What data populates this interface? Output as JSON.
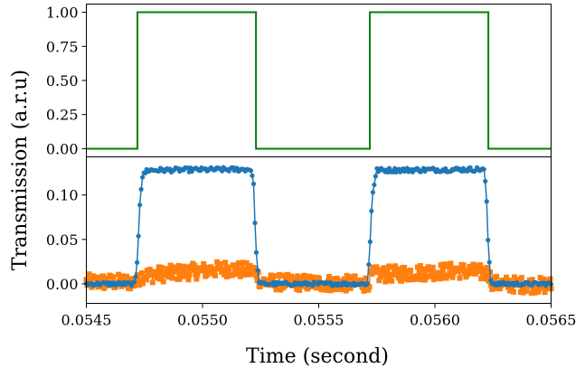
{
  "chart_data": [
    {
      "type": "line",
      "panel": "top",
      "xlim": [
        0.0545,
        0.0565
      ],
      "ylim": [
        -0.06,
        1.06
      ],
      "yticks": [
        0.0,
        0.25,
        0.5,
        0.75,
        1.0
      ],
      "ytick_labels": [
        "0.00",
        "0.25",
        "0.50",
        "0.75",
        "1.00"
      ],
      "colors": {
        "series": "#008000"
      },
      "series": [
        {
          "x": [
            0.0545,
            0.05472,
            0.05472,
            0.05523,
            0.05523,
            0.05572,
            0.05572,
            0.05623,
            0.05623,
            0.0565
          ],
          "y": [
            0,
            0,
            1,
            1,
            0,
            0,
            1,
            1,
            0,
            0
          ]
        }
      ]
    },
    {
      "type": "scatter",
      "panel": "bottom",
      "xlim": [
        0.0545,
        0.0565
      ],
      "ylim": [
        -0.022,
        0.143
      ],
      "yticks": [
        0.0,
        0.05,
        0.1
      ],
      "ytick_labels": [
        "0.00",
        "0.05",
        "0.10"
      ],
      "xticks": [
        0.0545,
        0.055,
        0.0555,
        0.056,
        0.0565
      ],
      "xtick_labels": [
        "0.0545",
        "0.0550",
        "0.0555",
        "0.0560",
        "0.0565"
      ],
      "colors": {
        "blue": "#1f77b4",
        "orange": "#ff7f0e"
      },
      "series": [
        {
          "marker": "circle",
          "approx_profile": [
            [
              0.0545,
              0.0
            ],
            [
              0.05471,
              0.0
            ],
            [
              0.05472,
              0.03
            ],
            [
              0.05473,
              0.09
            ],
            [
              0.05474,
              0.12
            ],
            [
              0.05476,
              0.128
            ],
            [
              0.05521,
              0.129
            ],
            [
              0.05522,
              0.11
            ],
            [
              0.05523,
              0.04
            ],
            [
              0.05524,
              0.005
            ],
            [
              0.05525,
              0.0
            ],
            [
              0.05571,
              0.0
            ],
            [
              0.05572,
              0.04
            ],
            [
              0.05573,
              0.1
            ],
            [
              0.05575,
              0.128
            ],
            [
              0.05621,
              0.129
            ],
            [
              0.05622,
              0.11
            ],
            [
              0.05623,
              0.04
            ],
            [
              0.05624,
              0.005
            ],
            [
              0.05625,
              0.0
            ],
            [
              0.0565,
              0.0
            ]
          ]
        },
        {
          "marker": "square",
          "approx_profile": [
            [
              0.0545,
              0.002
            ],
            [
              0.05472,
              0.002
            ],
            [
              0.05473,
              0.009
            ],
            [
              0.0551,
              0.017
            ],
            [
              0.05523,
              0.014
            ],
            [
              0.05525,
              0.002
            ],
            [
              0.05571,
              0.0
            ],
            [
              0.05573,
              0.01
            ],
            [
              0.0561,
              0.015
            ],
            [
              0.05623,
              0.012
            ],
            [
              0.05625,
              0.0
            ],
            [
              0.0565,
              -0.002
            ]
          ]
        }
      ]
    }
  ],
  "ylabel": "Transmission   (a.r.u)",
  "xlabel": "Time   (second)"
}
